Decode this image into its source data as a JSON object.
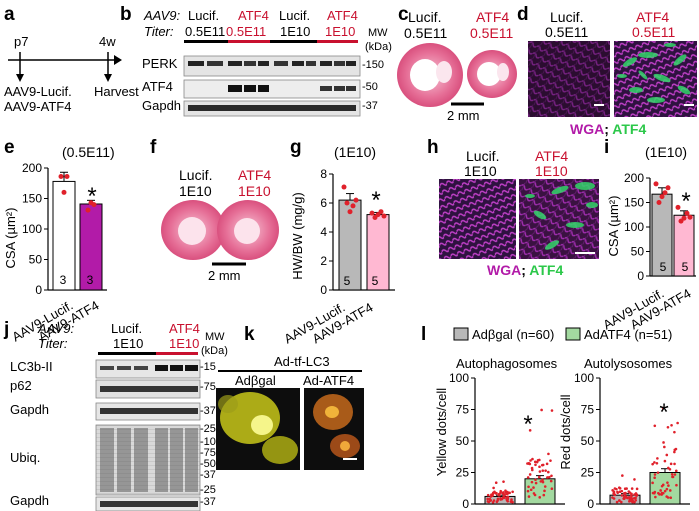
{
  "panels": {
    "a": {
      "letter": "a",
      "t_start": "p7",
      "t_end": "4w",
      "ctrl": "AAV9-Lucif.",
      "trt": "AAV9-ATF4",
      "harvest": "Harvest"
    },
    "b": {
      "letter": "b",
      "row1_label": "AAV9:",
      "row2_label": "Titer:",
      "g1": "Lucif.",
      "g2": "ATF4",
      "g3": "Lucif.",
      "g4": "ATF4",
      "t1": "0.5E11",
      "t2": "0.5E11",
      "t3": "1E10",
      "t4": "1E10",
      "mw": "MW",
      "kda": "(kDa)",
      "bands": [
        "PERK",
        "ATF4",
        "Gapdh"
      ],
      "mw_vals": [
        "-150",
        "-50",
        "-37"
      ]
    },
    "c": {
      "letter": "c",
      "ctrl": "Lucif.",
      "trt": "ATF4",
      "titer1": "0.5E11",
      "titer2": "0.5E11",
      "scale": "2 mm"
    },
    "d": {
      "letter": "d",
      "ctrl": "Lucif.",
      "trt": "ATF4",
      "titer1": "0.5E11",
      "titer2": "0.5E11",
      "stain1": "WGA",
      "sep": "; ",
      "stain2": "ATF4"
    },
    "e": {
      "letter": "e",
      "note": "(0.5E11)",
      "ylabel": "CSA (µm²)",
      "cats": [
        "AAV9-Lucif.",
        "AAV9-ATF4"
      ],
      "n": [
        "3",
        "3"
      ],
      "star": "*",
      "ticks": [
        "0",
        "50",
        "100",
        "150",
        "200"
      ]
    },
    "f": {
      "letter": "f",
      "ctrl": "Lucif.",
      "trt": "ATF4",
      "titer1": "1E10",
      "titer2": "1E10",
      "scale": "2 mm"
    },
    "g": {
      "letter": "g",
      "note": "(1E10)",
      "ylabel": "HW/BW (mg/g)",
      "cats": [
        "AAV9-Lucif.",
        "AAV9-ATF4"
      ],
      "n": [
        "5",
        "5"
      ],
      "star": "*",
      "ticks": [
        "0",
        "2",
        "4",
        "6",
        "8"
      ]
    },
    "h": {
      "letter": "h",
      "ctrl": "Lucif.",
      "trt": "ATF4",
      "titer1": "1E10",
      "titer2": "1E10",
      "stain1": "WGA",
      "sep": "; ",
      "stain2": "ATF4"
    },
    "i": {
      "letter": "i",
      "note": "(1E10)",
      "ylabel": "CSA (µm²)",
      "cats": [
        "AAV9-Lucif.",
        "AAV9-ATF4"
      ],
      "n": [
        "5",
        "5"
      ],
      "star": "*",
      "ticks": [
        "0",
        "50",
        "100",
        "150",
        "200"
      ]
    },
    "j": {
      "letter": "j",
      "row1_label": "AAV9:",
      "row2_label": "Titer:",
      "g1": "Lucif.",
      "g2": "ATF4",
      "t1": "1E10",
      "t2": "1E10",
      "mw": "MW",
      "kda": "(kDa)",
      "bands": [
        "LC3b-II",
        "p62",
        "Gapdh",
        "Ubiq.",
        "Gapdh"
      ],
      "mw_top": [
        "-15",
        "-75",
        "-37"
      ],
      "mw_ubiq": [
        "-250",
        "-100",
        "-75",
        "-50",
        "-37",
        "-25"
      ],
      "mw_bot": [
        "-37"
      ]
    },
    "k": {
      "letter": "k",
      "title": "Ad-tf-LC3",
      "left": "Adβgal",
      "right": "Ad-ATF4"
    },
    "l": {
      "letter": "l",
      "legend1": "Adβgal (n=60)",
      "legend2": "AdATF4 (n=51)",
      "plot1_title": "Autophagosomes",
      "plot1_ylabel": "Yellow dots/cell",
      "plot1_ticks": [
        "0",
        "25",
        "50",
        "75",
        "100"
      ],
      "plot2_title": "Autolysosomes",
      "plot2_ylabel": "Red dots/cell",
      "plot2_ticks": [
        "0",
        "25",
        "50",
        "75",
        "100"
      ],
      "star": "*"
    }
  },
  "chart_data": [
    {
      "type": "bar",
      "id": "e",
      "categories": [
        "AAV9-Lucif.",
        "AAV9-ATF4"
      ],
      "values": [
        178,
        141
      ],
      "errors": [
        15,
        6
      ],
      "ylim": [
        0,
        200
      ],
      "ylabel": "CSA (µm²)",
      "colors": [
        "#ffffff",
        "#b21ba8"
      ],
      "points": [
        [
          186,
          160,
          186
        ],
        [
          131,
          143,
          140
        ]
      ]
    },
    {
      "type": "bar",
      "id": "g",
      "categories": [
        "AAV9-Lucif.",
        "AAV9-ATF4"
      ],
      "values": [
        6.2,
        5.2
      ],
      "errors": [
        0.45,
        0.15
      ],
      "ylim": [
        0,
        8
      ],
      "ylabel": "HW/BW (mg/g)",
      "colors": [
        "#b8b8b8",
        "#ffb8d2"
      ],
      "points": [
        [
          7.1,
          6.0,
          5.4,
          5.8,
          6.2
        ],
        [
          5.3,
          5.0,
          5.2,
          5.4,
          5.1
        ]
      ]
    },
    {
      "type": "bar",
      "id": "i",
      "categories": [
        "AAV9-Lucif.",
        "AAV9-ATF4"
      ],
      "values": [
        167,
        124
      ],
      "errors": [
        13,
        9
      ],
      "ylim": [
        0,
        200
      ],
      "ylabel": "CSA (µm²)",
      "colors": [
        "#b8b8b8",
        "#ffb8d2"
      ],
      "points": [
        [
          188,
          150,
          162,
          170,
          180
        ],
        [
          140,
          112,
          118,
          128,
          120
        ]
      ]
    },
    {
      "type": "bar",
      "id": "l1",
      "categories": [
        "Adβgal",
        "AdATF4"
      ],
      "values": [
        6,
        20
      ],
      "errors": [
        1,
        2.5
      ],
      "ylim": [
        0,
        100
      ],
      "ylabel": "Yellow dots/cell",
      "colors": [
        "#b8b8b8",
        "#a3d9a0"
      ]
    },
    {
      "type": "bar",
      "id": "l2",
      "categories": [
        "Adβgal",
        "AdATF4"
      ],
      "values": [
        7,
        25
      ],
      "errors": [
        1.2,
        3
      ],
      "ylim": [
        0,
        100
      ],
      "ylabel": "Red dots/cell",
      "colors": [
        "#b8b8b8",
        "#a3d9a0"
      ]
    }
  ],
  "colors": {
    "red": "#c8102e",
    "green": "#2cc84a",
    "magenta": "#b21ba8"
  }
}
